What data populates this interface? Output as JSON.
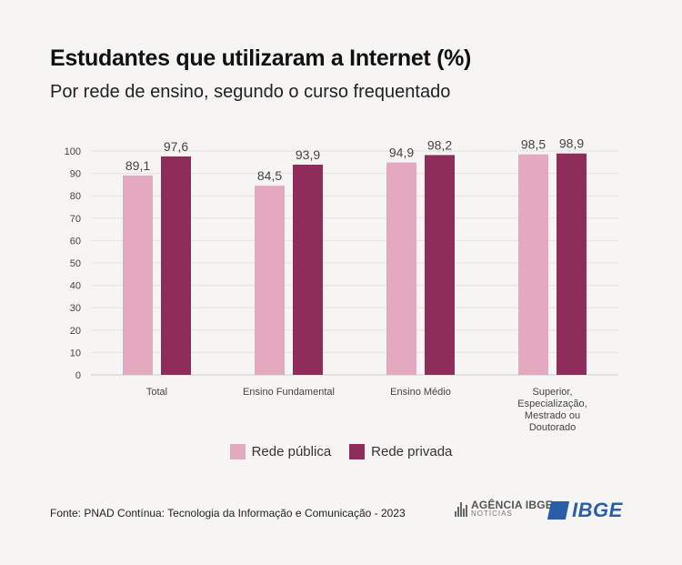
{
  "title": "Estudantes que utilizaram a Internet (%)",
  "subtitle": "Por rede de ensino, segundo o curso frequentado",
  "source": "Fonte: PNAD Contínua: Tecnologia da Informação e Comunicação - 2023",
  "logos": {
    "agencia_line1": "AGÊNCIA IBGE",
    "agencia_line2": "NOTÍCIAS",
    "ibge": "IBGE"
  },
  "colors": {
    "publica": "#e2a9c1",
    "privada": "#8e2d5a",
    "grid": "#ffffff",
    "axis_text": "#444444"
  },
  "chart_data": {
    "type": "bar",
    "title": "Estudantes que utilizaram a Internet (%)",
    "subtitle": "Por rede de ensino, segundo o curso frequentado",
    "categories": [
      [
        "Total"
      ],
      [
        "Ensino Fundamental"
      ],
      [
        "Ensino Médio"
      ],
      [
        "Superior,",
        "Especialização,",
        "Mestrado ou",
        "Doutorado"
      ]
    ],
    "series": [
      {
        "name": "Rede pública",
        "values": [
          89.1,
          84.5,
          94.9,
          98.5
        ],
        "labels": [
          "89,1",
          "84,5",
          "94,9",
          "98,5"
        ]
      },
      {
        "name": "Rede privada",
        "values": [
          97.6,
          93.9,
          98.2,
          98.9
        ],
        "labels": [
          "97,6",
          "93,9",
          "98,2",
          "98,9"
        ]
      }
    ],
    "ylim": [
      0,
      100
    ],
    "yticks": [
      0,
      10,
      20,
      30,
      40,
      50,
      60,
      70,
      80,
      90,
      100
    ],
    "grid": true,
    "legend": "bottom-center",
    "xlabel": "",
    "ylabel": ""
  }
}
